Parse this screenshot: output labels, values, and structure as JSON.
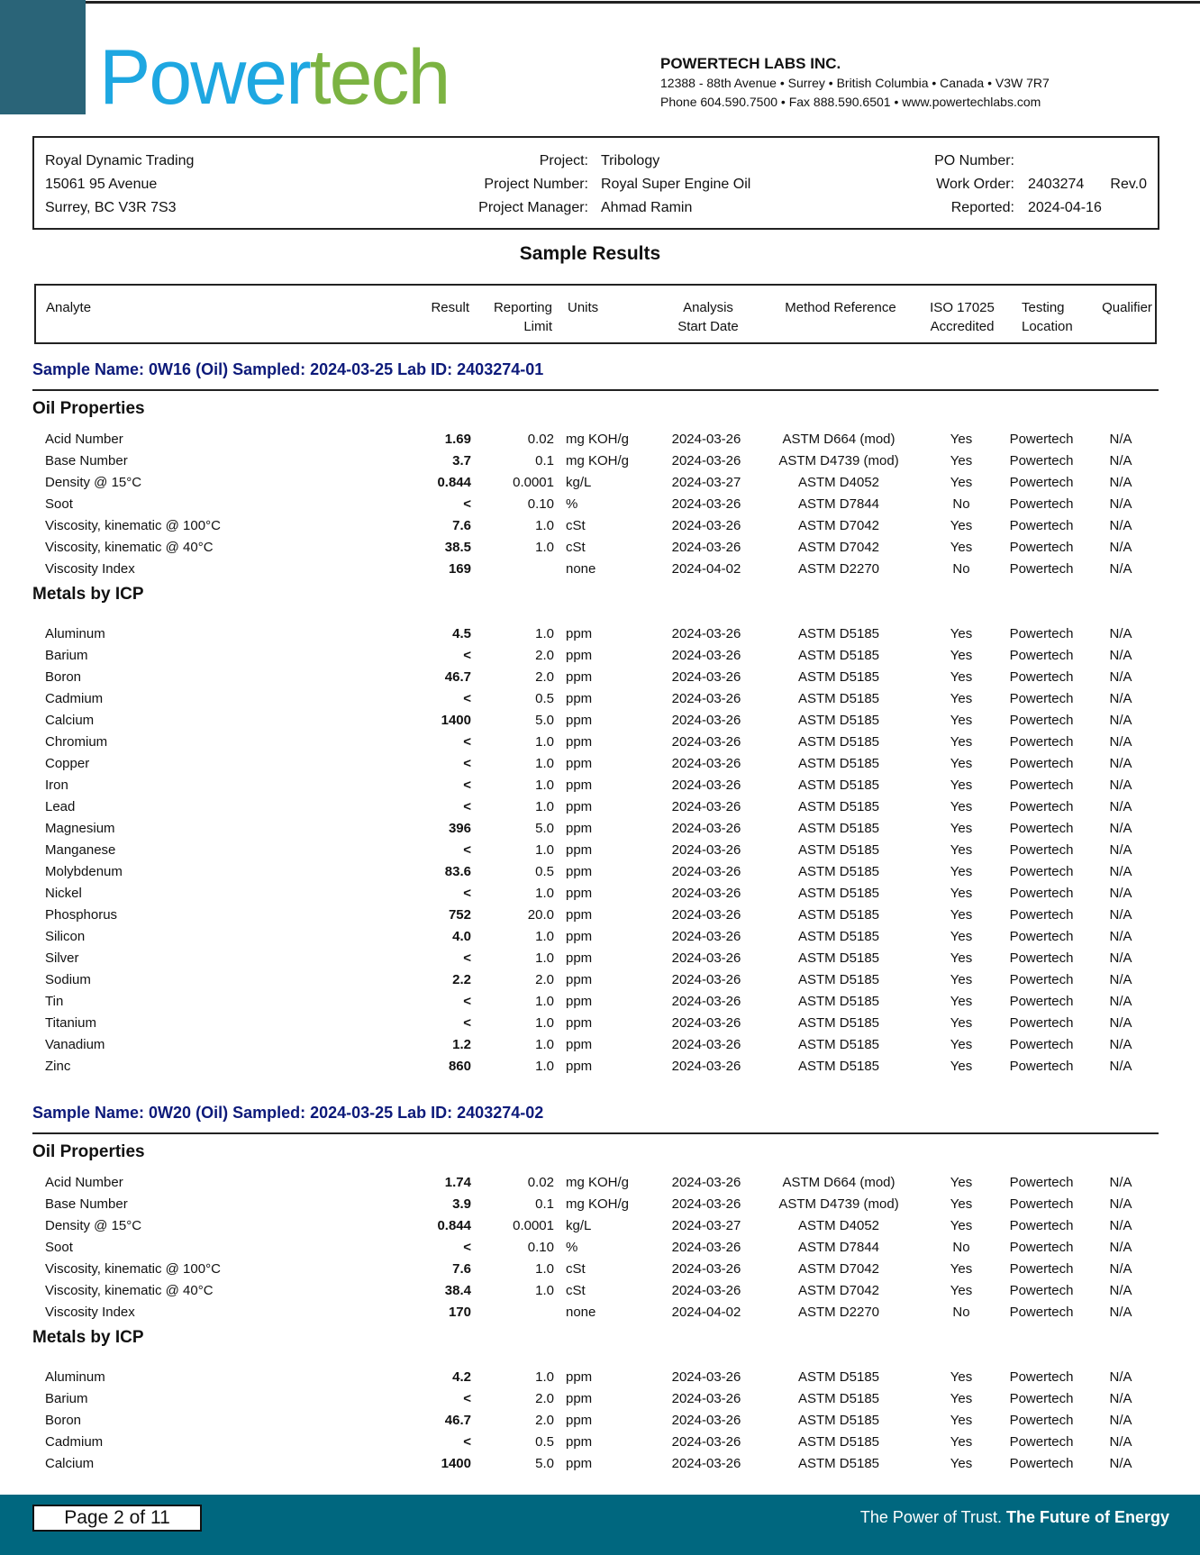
{
  "header": {
    "logo_part1": "Power",
    "logo_part2": "tech",
    "company_name": "POWERTECH LABS INC.",
    "address": "12388 - 88th Avenue • Surrey • British Columbia • Canada • V3W 7R7",
    "contact": "Phone 604.590.7500 • Fax 888.590.6501 • www.powertechlabs.com"
  },
  "client": {
    "name": "Royal Dynamic Trading",
    "street": "15061 95 Avenue",
    "city": "Surrey, BC  V3R 7S3",
    "project_label": "Project:",
    "project": "Tribology",
    "project_number_label": "Project Number:",
    "project_number": "Royal Super Engine Oil",
    "project_manager_label": "Project Manager:",
    "project_manager": "Ahmad Ramin",
    "po_label": "PO Number:",
    "work_order_label": "Work Order:",
    "work_order": "2403274",
    "revision": "Rev.0",
    "reported_label": "Reported:",
    "reported": "2024-04-16"
  },
  "title": "Sample Results",
  "columns": {
    "analyte": "Analyte",
    "result": "Result",
    "limit1": "Reporting",
    "limit2": "Limit",
    "units": "Units",
    "date1": "Analysis",
    "date2": "Start Date",
    "method": "Method Reference",
    "iso1": "ISO 17025",
    "iso2": "Accredited",
    "loc1": "Testing",
    "loc2": "Location",
    "qualifier": "Qualifier"
  },
  "samples": [
    {
      "header": "Sample Name: 0W16 (Oil)  Sampled: 2024-03-25  Lab ID: 2403274-01",
      "sections": [
        {
          "title": "Oil Properties",
          "rows": [
            [
              "Acid Number",
              "1.69",
              "0.02",
              "mg KOH/g",
              "2024-03-26",
              "ASTM D664 (mod)",
              "Yes",
              "Powertech",
              "N/A"
            ],
            [
              "Base Number",
              "3.7",
              "0.1",
              "mg KOH/g",
              "2024-03-26",
              "ASTM D4739 (mod)",
              "Yes",
              "Powertech",
              "N/A"
            ],
            [
              "Density @ 15°C",
              "0.844",
              "0.0001",
              "kg/L",
              "2024-03-27",
              "ASTM D4052",
              "Yes",
              "Powertech",
              "N/A"
            ],
            [
              "Soot",
              "<",
              "0.10",
              "%",
              "2024-03-26",
              "ASTM D7844",
              "No",
              "Powertech",
              "N/A"
            ],
            [
              "Viscosity, kinematic @ 100°C",
              "7.6",
              "1.0",
              "cSt",
              "2024-03-26",
              "ASTM D7042",
              "Yes",
              "Powertech",
              "N/A"
            ],
            [
              "Viscosity, kinematic @ 40°C",
              "38.5",
              "1.0",
              "cSt",
              "2024-03-26",
              "ASTM D7042",
              "Yes",
              "Powertech",
              "N/A"
            ],
            [
              "Viscosity Index",
              "169",
              "",
              "none",
              "2024-04-02",
              "ASTM D2270",
              "No",
              "Powertech",
              "N/A"
            ]
          ]
        },
        {
          "title": "Metals by ICP",
          "rows": [
            [
              "Aluminum",
              "4.5",
              "1.0",
              "ppm",
              "2024-03-26",
              "ASTM D5185",
              "Yes",
              "Powertech",
              "N/A"
            ],
            [
              "Barium",
              "<",
              "2.0",
              "ppm",
              "2024-03-26",
              "ASTM D5185",
              "Yes",
              "Powertech",
              "N/A"
            ],
            [
              "Boron",
              "46.7",
              "2.0",
              "ppm",
              "2024-03-26",
              "ASTM D5185",
              "Yes",
              "Powertech",
              "N/A"
            ],
            [
              "Cadmium",
              "<",
              "0.5",
              "ppm",
              "2024-03-26",
              "ASTM D5185",
              "Yes",
              "Powertech",
              "N/A"
            ],
            [
              "Calcium",
              "1400",
              "5.0",
              "ppm",
              "2024-03-26",
              "ASTM D5185",
              "Yes",
              "Powertech",
              "N/A"
            ],
            [
              "Chromium",
              "<",
              "1.0",
              "ppm",
              "2024-03-26",
              "ASTM D5185",
              "Yes",
              "Powertech",
              "N/A"
            ],
            [
              "Copper",
              "<",
              "1.0",
              "ppm",
              "2024-03-26",
              "ASTM D5185",
              "Yes",
              "Powertech",
              "N/A"
            ],
            [
              "Iron",
              "<",
              "1.0",
              "ppm",
              "2024-03-26",
              "ASTM D5185",
              "Yes",
              "Powertech",
              "N/A"
            ],
            [
              "Lead",
              "<",
              "1.0",
              "ppm",
              "2024-03-26",
              "ASTM D5185",
              "Yes",
              "Powertech",
              "N/A"
            ],
            [
              "Magnesium",
              "396",
              "5.0",
              "ppm",
              "2024-03-26",
              "ASTM D5185",
              "Yes",
              "Powertech",
              "N/A"
            ],
            [
              "Manganese",
              "<",
              "1.0",
              "ppm",
              "2024-03-26",
              "ASTM D5185",
              "Yes",
              "Powertech",
              "N/A"
            ],
            [
              "Molybdenum",
              "83.6",
              "0.5",
              "ppm",
              "2024-03-26",
              "ASTM D5185",
              "Yes",
              "Powertech",
              "N/A"
            ],
            [
              "Nickel",
              "<",
              "1.0",
              "ppm",
              "2024-03-26",
              "ASTM D5185",
              "Yes",
              "Powertech",
              "N/A"
            ],
            [
              "Phosphorus",
              "752",
              "20.0",
              "ppm",
              "2024-03-26",
              "ASTM D5185",
              "Yes",
              "Powertech",
              "N/A"
            ],
            [
              "Silicon",
              "4.0",
              "1.0",
              "ppm",
              "2024-03-26",
              "ASTM D5185",
              "Yes",
              "Powertech",
              "N/A"
            ],
            [
              "Silver",
              "<",
              "1.0",
              "ppm",
              "2024-03-26",
              "ASTM D5185",
              "Yes",
              "Powertech",
              "N/A"
            ],
            [
              "Sodium",
              "2.2",
              "2.0",
              "ppm",
              "2024-03-26",
              "ASTM D5185",
              "Yes",
              "Powertech",
              "N/A"
            ],
            [
              "Tin",
              "<",
              "1.0",
              "ppm",
              "2024-03-26",
              "ASTM D5185",
              "Yes",
              "Powertech",
              "N/A"
            ],
            [
              "Titanium",
              "<",
              "1.0",
              "ppm",
              "2024-03-26",
              "ASTM D5185",
              "Yes",
              "Powertech",
              "N/A"
            ],
            [
              "Vanadium",
              "1.2",
              "1.0",
              "ppm",
              "2024-03-26",
              "ASTM D5185",
              "Yes",
              "Powertech",
              "N/A"
            ],
            [
              "Zinc",
              "860",
              "1.0",
              "ppm",
              "2024-03-26",
              "ASTM D5185",
              "Yes",
              "Powertech",
              "N/A"
            ]
          ]
        }
      ]
    },
    {
      "header": "Sample Name: 0W20 (Oil)  Sampled: 2024-03-25  Lab ID: 2403274-02",
      "sections": [
        {
          "title": "Oil Properties",
          "rows": [
            [
              "Acid Number",
              "1.74",
              "0.02",
              "mg KOH/g",
              "2024-03-26",
              "ASTM D664 (mod)",
              "Yes",
              "Powertech",
              "N/A"
            ],
            [
              "Base Number",
              "3.9",
              "0.1",
              "mg KOH/g",
              "2024-03-26",
              "ASTM D4739 (mod)",
              "Yes",
              "Powertech",
              "N/A"
            ],
            [
              "Density @ 15°C",
              "0.844",
              "0.0001",
              "kg/L",
              "2024-03-27",
              "ASTM D4052",
              "Yes",
              "Powertech",
              "N/A"
            ],
            [
              "Soot",
              "<",
              "0.10",
              "%",
              "2024-03-26",
              "ASTM D7844",
              "No",
              "Powertech",
              "N/A"
            ],
            [
              "Viscosity, kinematic @ 100°C",
              "7.6",
              "1.0",
              "cSt",
              "2024-03-26",
              "ASTM D7042",
              "Yes",
              "Powertech",
              "N/A"
            ],
            [
              "Viscosity, kinematic @ 40°C",
              "38.4",
              "1.0",
              "cSt",
              "2024-03-26",
              "ASTM D7042",
              "Yes",
              "Powertech",
              "N/A"
            ],
            [
              "Viscosity Index",
              "170",
              "",
              "none",
              "2024-04-02",
              "ASTM D2270",
              "No",
              "Powertech",
              "N/A"
            ]
          ]
        },
        {
          "title": "Metals by ICP",
          "rows": [
            [
              "Aluminum",
              "4.2",
              "1.0",
              "ppm",
              "2024-03-26",
              "ASTM D5185",
              "Yes",
              "Powertech",
              "N/A"
            ],
            [
              "Barium",
              "<",
              "2.0",
              "ppm",
              "2024-03-26",
              "ASTM D5185",
              "Yes",
              "Powertech",
              "N/A"
            ],
            [
              "Boron",
              "46.7",
              "2.0",
              "ppm",
              "2024-03-26",
              "ASTM D5185",
              "Yes",
              "Powertech",
              "N/A"
            ],
            [
              "Cadmium",
              "<",
              "0.5",
              "ppm",
              "2024-03-26",
              "ASTM D5185",
              "Yes",
              "Powertech",
              "N/A"
            ],
            [
              "Calcium",
              "1400",
              "5.0",
              "ppm",
              "2024-03-26",
              "ASTM D5185",
              "Yes",
              "Powertech",
              "N/A"
            ]
          ]
        }
      ]
    }
  ],
  "footer": {
    "page": "Page 2 of 11",
    "tagline1": "The Power of Trust.",
    "tagline2": "The Future of Energy"
  },
  "colors": {
    "teal": "#00677f",
    "logo_blue": "#1ea7e1",
    "logo_green": "#7cb342",
    "sample_header": "#0d1a7a"
  }
}
